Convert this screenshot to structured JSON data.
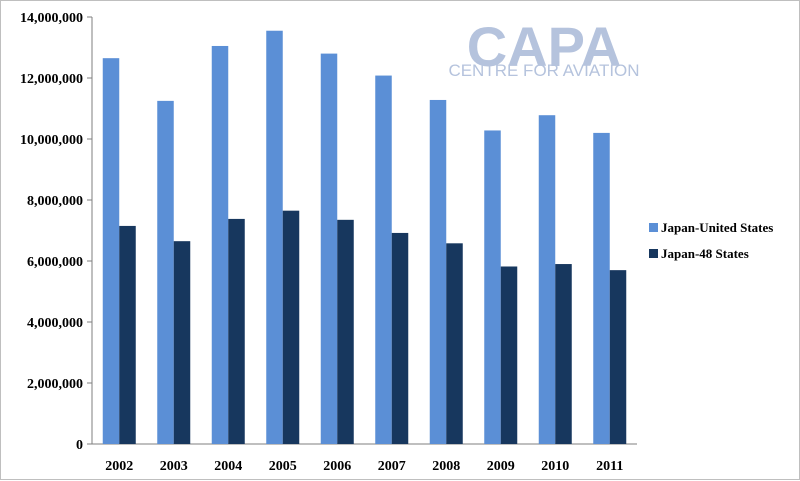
{
  "chart_data": {
    "type": "bar",
    "categories": [
      "2002",
      "2003",
      "2004",
      "2005",
      "2006",
      "2007",
      "2008",
      "2009",
      "2010",
      "2011"
    ],
    "series": [
      {
        "name": "Japan-United States",
        "color": "#5b8fd6",
        "values": [
          12650000,
          11250000,
          13050000,
          13550000,
          12800000,
          12080000,
          11280000,
          10280000,
          10780000,
          10200000
        ]
      },
      {
        "name": "Japan-48 States",
        "color": "#17375e",
        "values": [
          7150000,
          6650000,
          7380000,
          7650000,
          7350000,
          6920000,
          6580000,
          5820000,
          5900000,
          5700000
        ]
      }
    ],
    "yticks": [
      "0",
      "2,000,000",
      "4,000,000",
      "6,000,000",
      "8,000,000",
      "10,000,000",
      "12,000,000",
      "14,000,000"
    ],
    "ylim": [
      0,
      14000000
    ],
    "legend_position": "right",
    "grid": false
  },
  "watermark": {
    "main": "CAPA",
    "sub": "CENTRE FOR AVIATION",
    "color": "#b5c3dd"
  }
}
